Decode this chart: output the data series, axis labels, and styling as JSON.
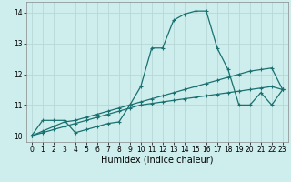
{
  "xlabel": "Humidex (Indice chaleur)",
  "background_color": "#cdeeed",
  "grid_color": "#b8d8d8",
  "line_color": "#1a7070",
  "xlim": [
    -0.5,
    23.5
  ],
  "ylim": [
    9.8,
    14.35
  ],
  "yticks": [
    10,
    11,
    12,
    13,
    14
  ],
  "xticks": [
    0,
    1,
    2,
    3,
    4,
    5,
    6,
    7,
    8,
    9,
    10,
    11,
    12,
    13,
    14,
    15,
    16,
    17,
    18,
    19,
    20,
    21,
    22,
    23
  ],
  "series1_x": [
    0,
    1,
    2,
    3,
    4,
    5,
    6,
    7,
    8,
    9,
    10,
    11,
    12,
    13,
    14,
    15,
    16,
    17,
    18,
    19,
    20,
    21,
    22,
    23
  ],
  "series1_y": [
    10.0,
    10.5,
    10.5,
    10.5,
    10.1,
    10.2,
    10.3,
    10.4,
    10.45,
    11.0,
    11.6,
    12.85,
    12.85,
    13.75,
    13.95,
    14.05,
    14.05,
    12.85,
    12.15,
    11.0,
    11.0,
    11.4,
    11.0,
    11.5
  ],
  "series2_x": [
    0,
    1,
    2,
    3,
    4,
    5,
    6,
    7,
    8,
    9,
    10,
    11,
    12,
    13,
    14,
    15,
    16,
    17,
    18,
    19,
    20,
    21,
    22,
    23
  ],
  "series2_y": [
    10.0,
    10.15,
    10.3,
    10.45,
    10.5,
    10.6,
    10.7,
    10.8,
    10.9,
    11.0,
    11.1,
    11.2,
    11.3,
    11.4,
    11.5,
    11.6,
    11.7,
    11.8,
    11.9,
    12.0,
    12.1,
    12.15,
    12.2,
    11.5
  ],
  "series3_x": [
    0,
    1,
    2,
    3,
    4,
    5,
    6,
    7,
    8,
    9,
    10,
    11,
    12,
    13,
    14,
    15,
    16,
    17,
    18,
    19,
    20,
    21,
    22,
    23
  ],
  "series3_y": [
    10.0,
    10.1,
    10.2,
    10.3,
    10.4,
    10.5,
    10.6,
    10.7,
    10.8,
    10.9,
    11.0,
    11.05,
    11.1,
    11.15,
    11.2,
    11.25,
    11.3,
    11.35,
    11.4,
    11.45,
    11.5,
    11.55,
    11.6,
    11.5
  ],
  "linewidth": 0.9,
  "markersize": 3,
  "xlabel_fontsize": 7,
  "tick_fontsize": 5.5
}
